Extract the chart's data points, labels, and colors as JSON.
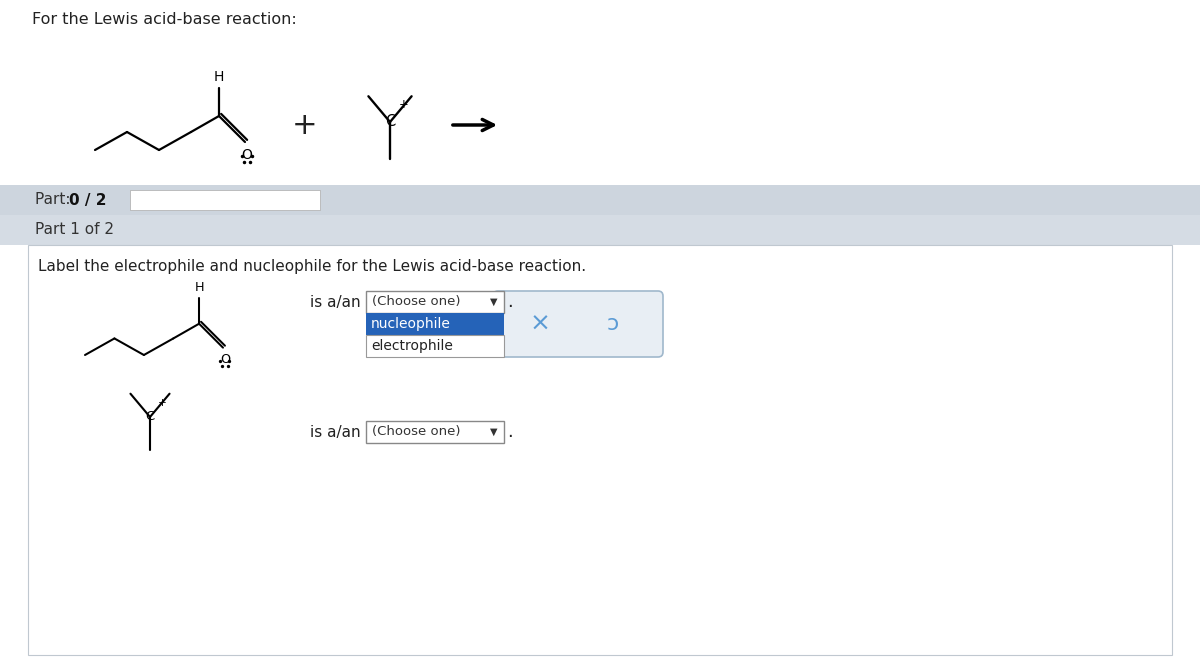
{
  "title_text": "For the Lewis acid-base reaction:",
  "part_label": "Part: ",
  "part_label_bold": "0 / 2",
  "part1_label": "Part 1 of 2",
  "instruction": "Label the electrophile and nucleophile for the Lewis acid-base reaction.",
  "is_a_an": "is a/an",
  "choose_one": "(Choose one)",
  "bg_color": "#ffffff",
  "panel_bg": "#cdd5de",
  "panel2_bg": "#d5dce4",
  "content_bg": "#ffffff",
  "content_border": "#c0c8d0",
  "dropdown_bg": "#2563b8",
  "dropdown_border": "#888888",
  "xmark_color": "#5b9bd5",
  "undo_color": "#5b9bd5",
  "box_border": "#a0b8cc",
  "box_bg": "#e8eef4",
  "text_color": "#222222"
}
